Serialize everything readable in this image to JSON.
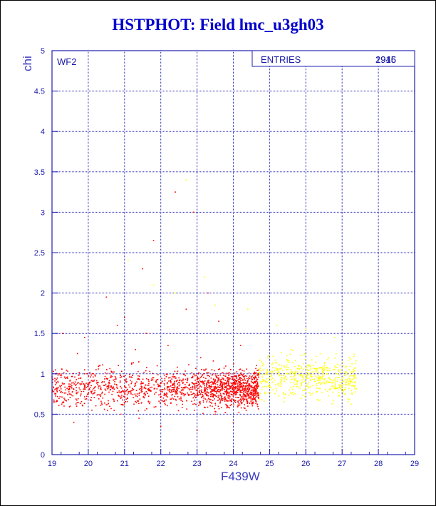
{
  "title": "HSTPHOT: Field lmc_u3gh03",
  "chart_data": {
    "type": "scatter",
    "xlabel": "F439W",
    "ylabel": "chi",
    "panel_label": "WF2",
    "stats_label": "ENTRIES",
    "stats_value_1": "2915",
    "stats_value_2": "1946",
    "xlim": [
      19,
      29
    ],
    "ylim": [
      0,
      5
    ],
    "x_ticks": [
      "19",
      "20",
      "21",
      "22",
      "23",
      "24",
      "25",
      "26",
      "27",
      "28",
      "29"
    ],
    "y_ticks": [
      "0",
      "0.5",
      "1",
      "1.5",
      "2",
      "2.5",
      "3",
      "3.5",
      "4",
      "4.5",
      "5"
    ],
    "grid": true,
    "series": [
      {
        "color": "#ff0000",
        "points": [
          [
            19.2,
            1.0
          ],
          [
            19.3,
            1.5
          ],
          [
            19.4,
            0.95
          ],
          [
            19.5,
            0.6
          ],
          [
            19.6,
            0.4
          ],
          [
            19.7,
            1.25
          ],
          [
            19.8,
            0.75
          ],
          [
            19.9,
            1.45
          ],
          [
            20.0,
            0.85
          ],
          [
            20.1,
            0.55
          ],
          [
            20.3,
            1.1
          ],
          [
            20.4,
            0.7
          ],
          [
            20.5,
            1.95
          ],
          [
            20.6,
            0.8
          ],
          [
            20.8,
            1.6
          ],
          [
            20.9,
            0.5
          ],
          [
            21.0,
            1.7
          ],
          [
            21.2,
            0.9
          ],
          [
            21.3,
            1.3
          ],
          [
            21.4,
            0.45
          ],
          [
            21.5,
            2.3
          ],
          [
            21.6,
            1.5
          ],
          [
            21.7,
            0.65
          ],
          [
            21.8,
            2.65
          ],
          [
            21.9,
            1.1
          ],
          [
            22.0,
            0.35
          ],
          [
            22.2,
            1.35
          ],
          [
            22.4,
            3.25
          ],
          [
            22.5,
            0.95
          ],
          [
            22.7,
            1.8
          ],
          [
            22.9,
            3.0
          ],
          [
            23.0,
            0.3
          ],
          [
            23.1,
            1.2
          ],
          [
            23.3,
            2.0
          ],
          [
            23.5,
            0.5
          ],
          [
            23.6,
            1.65
          ],
          [
            23.8,
            1.0
          ],
          [
            24.0,
            0.4
          ],
          [
            24.2,
            1.35
          ],
          [
            24.4,
            0.6
          ],
          [
            24.6,
            0.9
          ]
        ]
      },
      {
        "color": "#ffff00",
        "points": [
          [
            21.1,
            2.4
          ],
          [
            21.8,
            2.1
          ],
          [
            22.4,
            2.0
          ],
          [
            22.7,
            3.4
          ],
          [
            23.2,
            2.2
          ],
          [
            23.5,
            1.85
          ],
          [
            24.4,
            1.8
          ],
          [
            24.8,
            1.1
          ],
          [
            25.2,
            1.6
          ],
          [
            25.6,
            1.3
          ],
          [
            26.0,
            1.55
          ],
          [
            26.4,
            1.25
          ],
          [
            26.8,
            1.45
          ],
          [
            27.2,
            1.2
          ]
        ]
      }
    ]
  }
}
